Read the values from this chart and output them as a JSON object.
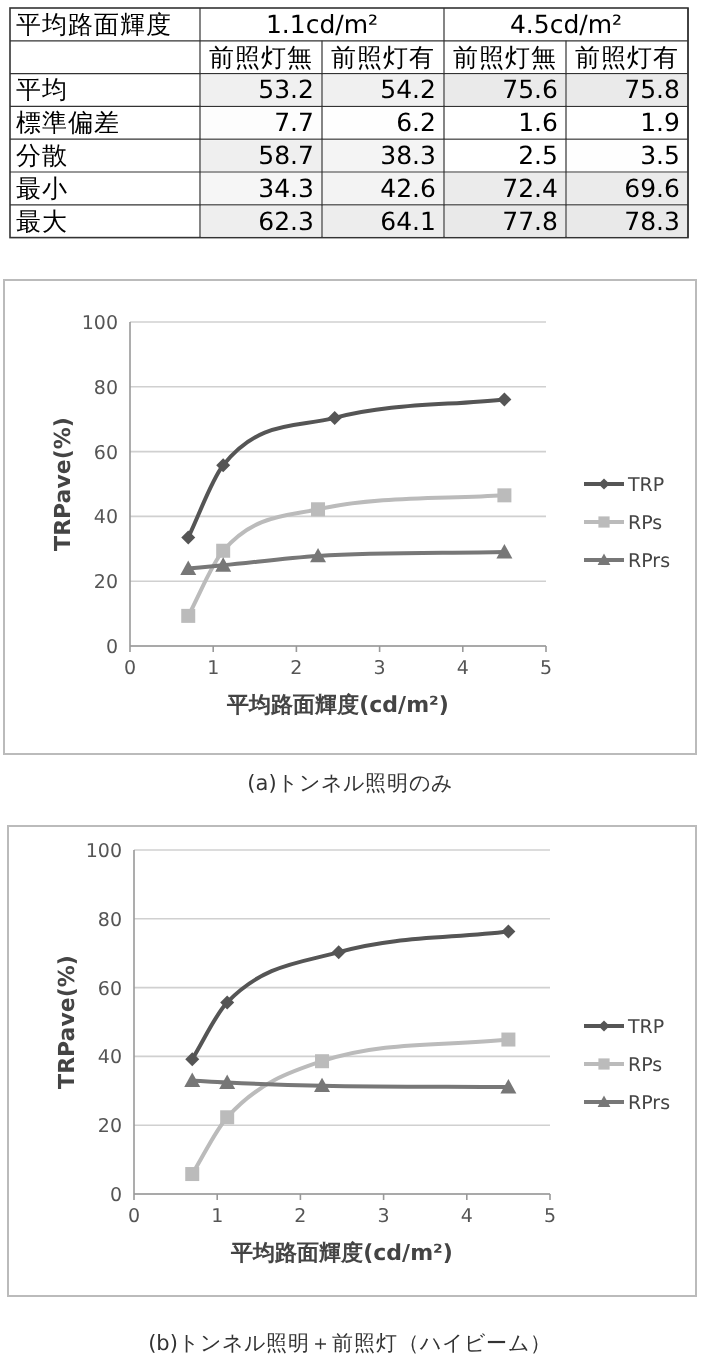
{
  "chart_data": [
    {
      "type": "heatmap",
      "annotations": [
        "平均路面輝度",
        "1.1cd/m²",
        "4.5cd/m²"
      ],
      "categories": [
        "前照灯無",
        "前照灯有",
        "前照灯無",
        "前照灯有"
      ],
      "y_categories": [
        "平均",
        "標準偏差",
        "分散",
        "最小",
        "最大"
      ],
      "cells": [
        [
          53.2,
          54.2,
          75.6,
          75.8
        ],
        [
          7.7,
          6.2,
          1.6,
          1.9
        ],
        [
          58.7,
          38.3,
          2.5,
          3.5
        ],
        [
          34.3,
          42.6,
          72.4,
          69.6
        ],
        [
          62.3,
          64.1,
          77.8,
          78.3
        ]
      ],
      "cell_labels": [
        [
          "53.2",
          "54.2",
          "75.6",
          "75.8"
        ],
        [
          "7.7",
          "6.2",
          "1.6",
          "1.9"
        ],
        [
          "58.7",
          "38.3",
          "2.5",
          "3.5"
        ],
        [
          "34.3",
          "42.6",
          "72.4",
          "69.6"
        ],
        [
          "62.3",
          "64.1",
          "77.8",
          "78.3"
        ]
      ]
    },
    {
      "type": "line",
      "title": "(a)トンネル照明のみ",
      "xlabel": "平均路面輝度(cd/m²)",
      "ylabel": "TRPave(%)",
      "xlim": [
        0,
        5
      ],
      "xticks": [
        0,
        1,
        2,
        3,
        4,
        5
      ],
      "ylim": [
        0,
        100
      ],
      "yticks": [
        0,
        20,
        40,
        60,
        80,
        100
      ],
      "grid": "y",
      "legend": "right",
      "series": [
        {
          "name": "TRP",
          "color": "#555555",
          "marker": "diamond",
          "x": [
            0.7,
            1.12,
            2.46,
            4.5
          ],
          "values": [
            33.5,
            55.8,
            70.4,
            76.1
          ]
        },
        {
          "name": "RPs",
          "color": "#bbbbbb",
          "marker": "square",
          "x": [
            0.7,
            1.12,
            2.26,
            4.5
          ],
          "values": [
            9.3,
            29.4,
            42.2,
            46.5
          ]
        },
        {
          "name": "RPrs",
          "color": "#777777",
          "marker": "triangle",
          "x": [
            0.7,
            1.12,
            2.26,
            4.5
          ],
          "values": [
            23.9,
            24.9,
            27.8,
            29.0
          ]
        }
      ]
    },
    {
      "type": "line",
      "title": "(b)トンネル照明＋前照灯（ハイビーム）",
      "xlabel": "平均路面輝度(cd/m²)",
      "ylabel": "TRPave(%)",
      "xlim": [
        0,
        5
      ],
      "xticks": [
        0,
        1,
        2,
        3,
        4,
        5
      ],
      "ylim": [
        0,
        100
      ],
      "yticks": [
        0,
        20,
        40,
        60,
        80,
        100
      ],
      "grid": "y",
      "legend": "right",
      "series": [
        {
          "name": "TRP",
          "color": "#555555",
          "marker": "diamond",
          "x": [
            0.7,
            1.12,
            2.46,
            4.5
          ],
          "values": [
            39.2,
            55.7,
            70.3,
            76.3
          ]
        },
        {
          "name": "RPs",
          "color": "#bbbbbb",
          "marker": "square",
          "x": [
            0.7,
            1.12,
            2.26,
            4.5
          ],
          "values": [
            5.8,
            22.3,
            38.6,
            44.9
          ]
        },
        {
          "name": "RPrs",
          "color": "#777777",
          "marker": "triangle",
          "x": [
            0.7,
            1.12,
            2.26,
            4.5
          ],
          "values": [
            33.0,
            32.4,
            31.5,
            31.1
          ]
        }
      ]
    }
  ]
}
